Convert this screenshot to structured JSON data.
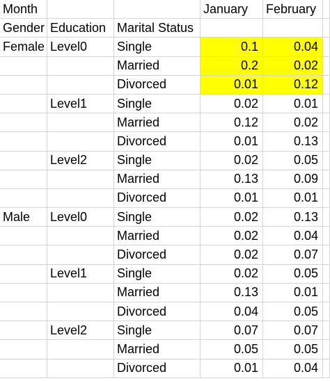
{
  "header": {
    "month_label": "Month",
    "january": "January",
    "february": "February",
    "gender_label": "Gender",
    "education_label": "Education",
    "marital_label": "Marital Status"
  },
  "rows": [
    {
      "gender": "Female",
      "education": "Level0",
      "status": "Single",
      "jan": "0.1",
      "feb": "0.04"
    },
    {
      "gender": "",
      "education": "",
      "status": "Married",
      "jan": "0.2",
      "feb": "0.02"
    },
    {
      "gender": "",
      "education": "",
      "status": "Divorced",
      "jan": "0.01",
      "feb": "0.12"
    },
    {
      "gender": "",
      "education": "Level1",
      "status": "Single",
      "jan": "0.02",
      "feb": "0.01"
    },
    {
      "gender": "",
      "education": "",
      "status": "Married",
      "jan": "0.12",
      "feb": "0.02"
    },
    {
      "gender": "",
      "education": "",
      "status": "Divorced",
      "jan": "0.01",
      "feb": "0.13"
    },
    {
      "gender": "",
      "education": "Level2",
      "status": "Single",
      "jan": "0.02",
      "feb": "0.05"
    },
    {
      "gender": "",
      "education": "",
      "status": "Married",
      "jan": "0.13",
      "feb": "0.09"
    },
    {
      "gender": "",
      "education": "",
      "status": "Divorced",
      "jan": "0.01",
      "feb": "0.01"
    },
    {
      "gender": "Male",
      "education": "Level0",
      "status": "Single",
      "jan": "0.02",
      "feb": "0.13"
    },
    {
      "gender": "",
      "education": "",
      "status": "Married",
      "jan": "0.02",
      "feb": "0.04"
    },
    {
      "gender": "",
      "education": "",
      "status": "Divorced",
      "jan": "0.02",
      "feb": "0.07"
    },
    {
      "gender": "",
      "education": "Level1",
      "status": "Single",
      "jan": "0.02",
      "feb": "0.05"
    },
    {
      "gender": "",
      "education": "",
      "status": "Married",
      "jan": "0.13",
      "feb": "0.01"
    },
    {
      "gender": "",
      "education": "",
      "status": "Divorced",
      "jan": "0.04",
      "feb": "0.05"
    },
    {
      "gender": "",
      "education": "Level2",
      "status": "Single",
      "jan": "0.07",
      "feb": "0.07"
    },
    {
      "gender": "",
      "education": "",
      "status": "Married",
      "jan": "0.05",
      "feb": "0.05"
    },
    {
      "gender": "",
      "education": "",
      "status": "Divorced",
      "jan": "0.01",
      "feb": "0.04"
    }
  ],
  "highlight_color": "#ffff00"
}
